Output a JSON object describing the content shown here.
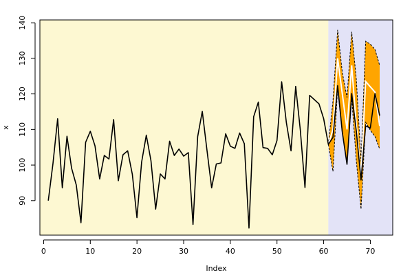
{
  "chart_data": {
    "type": "line",
    "title": "",
    "xlabel": "Index",
    "ylabel": "x",
    "xlim": [
      -0.8,
      74.8
    ],
    "ylim": [
      80.3,
      140.8
    ],
    "x_ticks": [
      0,
      10,
      20,
      30,
      40,
      50,
      60,
      70
    ],
    "y_ticks": [
      90,
      100,
      110,
      120,
      130,
      140
    ],
    "grid": false,
    "background_regions": [
      {
        "x_from": -0.8,
        "x_to": 61,
        "color": "#fdf8d2"
      },
      {
        "x_from": 61,
        "x_to": 74.8,
        "color": "#e3e3f7"
      }
    ],
    "colors": {
      "actual_line": "#000000",
      "forecast_band": "#ffa500",
      "forecast_line": "#ffffff",
      "bound_line": "#000000"
    },
    "series": [
      {
        "role": "actual",
        "x": [
          1,
          2,
          3,
          4,
          5,
          6,
          7,
          8,
          9,
          10,
          11,
          12,
          13,
          14,
          15,
          16,
          17,
          18,
          19,
          20,
          21,
          22,
          23,
          24,
          25,
          26,
          27,
          28,
          29,
          30,
          31,
          32,
          33,
          34,
          35,
          36,
          37,
          38,
          39,
          40,
          41,
          42,
          43,
          44,
          45,
          46,
          47,
          48,
          49,
          50,
          51,
          52,
          53,
          54,
          55,
          56,
          57,
          58,
          59,
          60,
          61,
          62,
          63,
          64,
          65,
          66,
          67,
          68,
          69,
          70,
          71,
          72
        ],
        "values": [
          90.0,
          100.4,
          113.0,
          93.6,
          108.1,
          99.1,
          94.4,
          83.8,
          106.4,
          109.5,
          105.4,
          96.1,
          102.7,
          101.7,
          112.8,
          95.6,
          102.9,
          104.0,
          97.4,
          85.2,
          100.8,
          108.4,
          101.2,
          87.6,
          97.5,
          96.1,
          106.7,
          102.7,
          104.5,
          102.5,
          103.5,
          83.3,
          108.0,
          115.1,
          104.2,
          93.6,
          100.3,
          100.6,
          108.8,
          105.3,
          104.7,
          109.0,
          106.0,
          82.3,
          113.6,
          117.7,
          104.9,
          104.7,
          102.9,
          106.9,
          123.4,
          112.0,
          104.0,
          122.1,
          109.9,
          93.7,
          119.6,
          118.4,
          117.2,
          113.0,
          105.8,
          107.8,
          122.3,
          109.2,
          100.2,
          120.1,
          109.5,
          95.8,
          111.0,
          110.4,
          120.1,
          113.9
        ]
      },
      {
        "role": "forecast",
        "x": [
          61,
          62,
          63,
          64,
          65,
          66,
          67,
          68,
          69,
          70,
          71,
          72
        ],
        "values": [
          105.8,
          110.0,
          130.0,
          120.0,
          110.0,
          128.0,
          111.0,
          97.0,
          123.5,
          122.0,
          120.5,
          111.0
        ]
      },
      {
        "role": "upper_bound",
        "x": [
          61,
          62,
          63,
          64,
          65,
          66,
          67,
          68,
          69,
          70,
          71,
          72
        ],
        "values": [
          105.8,
          118.0,
          138.0,
          126.0,
          119.0,
          137.5,
          124.0,
          101.0,
          134.8,
          134.0,
          132.5,
          128.0
        ]
      },
      {
        "role": "lower_bound",
        "x": [
          61,
          62,
          63,
          64,
          65,
          66,
          67,
          68,
          69,
          70,
          71,
          72
        ],
        "values": [
          105.8,
          98.2,
          122.0,
          109.0,
          100.5,
          119.0,
          101.0,
          87.6,
          112.0,
          109.8,
          108.0,
          104.5
        ]
      }
    ]
  }
}
